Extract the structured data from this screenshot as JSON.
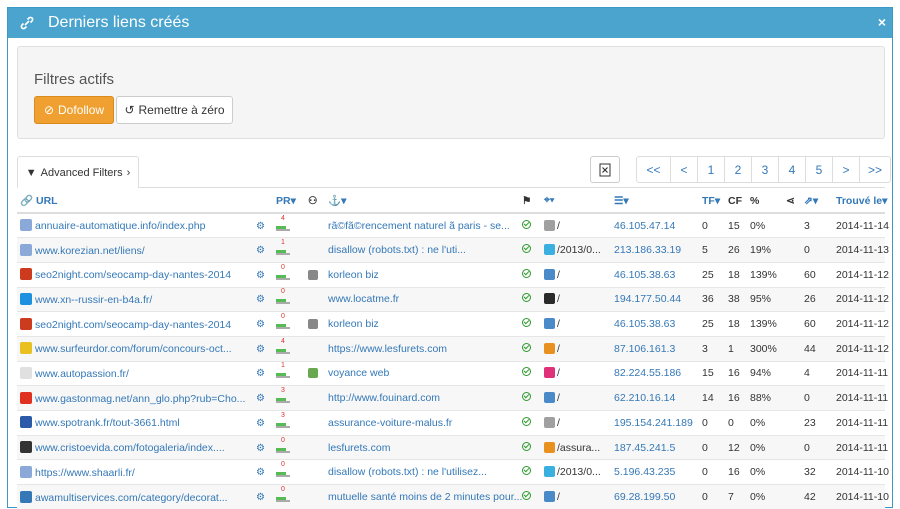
{
  "header": {
    "title": "Derniers liens créés",
    "close": "×"
  },
  "filters": {
    "title": "Filtres actifs",
    "dofollow_label": "Dofollow",
    "reset_label": "Remettre à zéro"
  },
  "tabs": {
    "advanced_label": "Advanced Filters"
  },
  "pager": [
    "<<",
    "<",
    "1",
    "2",
    "3",
    "4",
    "5",
    ">",
    ">>"
  ],
  "columns": {
    "url": "URL",
    "pr": "PR",
    "tf": "TF",
    "cf": "CF",
    "pct": "%",
    "found": "Trouvé le"
  },
  "rows": [
    {
      "url": "annuaire-automatique.info/index.php",
      "fav": "#8aa8d8",
      "pr": "4",
      "anchor_icon": "",
      "anchor": "rã©fã©rencement naturel ã  paris - se...",
      "path": "/",
      "cms": "#a0a0a0",
      "ip": "46.105.47.14",
      "tf": "0",
      "cf": "15",
      "pct": "0%",
      "links": "3",
      "date": "2014-11-14"
    },
    {
      "url": "www.korezian.net/liens/",
      "fav": "#8aa8d8",
      "pr": "1",
      "anchor_icon": "",
      "anchor": "disallow (robots.txt) : ne l'uti...",
      "path": "/2013/0...",
      "cms": "#3ab0e0",
      "ip": "213.186.33.19",
      "tf": "5",
      "cf": "26",
      "pct": "19%",
      "links": "0",
      "date": "2014-11-13"
    },
    {
      "url": "seo2night.com/seocamp-day-nantes-2014",
      "fav": "#cc3b1e",
      "pr": "0",
      "anchor_icon": "#888",
      "anchor": "korleon biz",
      "path": "/",
      "cms": "#4b8ac8",
      "ip": "46.105.38.63",
      "tf": "25",
      "cf": "18",
      "pct": "139%",
      "links": "60",
      "date": "2014-11-12"
    },
    {
      "url": "www.xn--russir-en-b4a.fr/",
      "fav": "#1e90e0",
      "pr": "0",
      "anchor_icon": "",
      "anchor": "www.locatme.fr",
      "path": "/",
      "cms": "#2a2a2a",
      "ip": "194.177.50.44",
      "tf": "36",
      "cf": "38",
      "pct": "95%",
      "links": "26",
      "date": "2014-11-12"
    },
    {
      "url": "seo2night.com/seocamp-day-nantes-2014",
      "fav": "#cc3b1e",
      "pr": "0",
      "anchor_icon": "#888",
      "anchor": "korleon biz",
      "path": "/",
      "cms": "#4b8ac8",
      "ip": "46.105.38.63",
      "tf": "25",
      "cf": "18",
      "pct": "139%",
      "links": "60",
      "date": "2014-11-12"
    },
    {
      "url": "www.surfeurdor.com/forum/concours-oct...",
      "fav": "#e8c020",
      "pr": "4",
      "anchor_icon": "",
      "anchor": "https://www.lesfurets.com",
      "path": "/",
      "cms": "#e89020",
      "ip": "87.106.161.3",
      "tf": "3",
      "cf": "1",
      "pct": "300%",
      "links": "44",
      "date": "2014-11-12"
    },
    {
      "url": "www.autopassion.fr/",
      "fav": "#e0e0e0",
      "pr": "1",
      "anchor_icon": "#6aa84f",
      "anchor": "voyance web",
      "path": "/",
      "cms": "#e0307a",
      "ip": "82.224.55.186",
      "tf": "15",
      "cf": "16",
      "pct": "94%",
      "links": "4",
      "date": "2014-11-11"
    },
    {
      "url": "www.gastonmag.net/ann_glo.php?rub=Cho...",
      "fav": "#e03020",
      "pr": "3",
      "anchor_icon": "",
      "anchor": "http://www.fouinard.com",
      "path": "/",
      "cms": "#4b8ac8",
      "ip": "62.210.16.14",
      "tf": "14",
      "cf": "16",
      "pct": "88%",
      "links": "0",
      "date": "2014-11-11"
    },
    {
      "url": "www.spotrank.fr/tout-3661.html",
      "fav": "#2a5aa8",
      "pr": "3",
      "anchor_icon": "",
      "anchor": "assurance-voiture-malus.fr",
      "path": "/",
      "cms": "#a0a0a0",
      "ip": "195.154.241.189",
      "tf": "0",
      "cf": "0",
      "pct": "0%",
      "links": "23",
      "date": "2014-11-11"
    },
    {
      "url": "www.cristoevida.com/fotogaleria/index....",
      "fav": "#333333",
      "pr": "0",
      "anchor_icon": "",
      "anchor": "lesfurets.com",
      "path": "/assura...",
      "cms": "#e89020",
      "ip": "187.45.241.5",
      "tf": "0",
      "cf": "12",
      "pct": "0%",
      "links": "0",
      "date": "2014-11-11"
    },
    {
      "url": "https://www.shaarli.fr/",
      "fav": "#8aa8d8",
      "pr": "0",
      "anchor_icon": "",
      "anchor": "disallow (robots.txt) : ne l'utilisez...",
      "path": "/2013/0...",
      "cms": "#3ab0e0",
      "ip": "5.196.43.235",
      "tf": "0",
      "cf": "16",
      "pct": "0%",
      "links": "32",
      "date": "2014-11-10"
    },
    {
      "url": "awamultiservices.com/category/decorat...",
      "fav": "#3478b7",
      "pr": "0",
      "anchor_icon": "",
      "anchor": "mutuelle santé moins de 2 minutes pour...",
      "path": "/",
      "cms": "#4b8ac8",
      "ip": "69.28.199.50",
      "tf": "0",
      "cf": "7",
      "pct": "0%",
      "links": "42",
      "date": "2014-11-10"
    }
  ]
}
